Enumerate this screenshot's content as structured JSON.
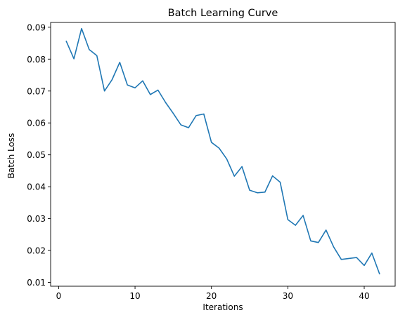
{
  "chart_data": {
    "type": "line",
    "title": "Batch Learning Curve",
    "xlabel": "Iterations",
    "ylabel": "Batch Loss",
    "xlim": [
      -1.05,
      44.05
    ],
    "ylim": [
      0.0088,
      0.0915
    ],
    "xticks": [
      {
        "value": 0,
        "label": "0"
      },
      {
        "value": 10,
        "label": "10"
      },
      {
        "value": 20,
        "label": "20"
      },
      {
        "value": 30,
        "label": "30"
      },
      {
        "value": 40,
        "label": "40"
      }
    ],
    "yticks": [
      {
        "value": 0.01,
        "label": "0.01"
      },
      {
        "value": 0.02,
        "label": "0.02"
      },
      {
        "value": 0.03,
        "label": "0.03"
      },
      {
        "value": 0.04,
        "label": "0.04"
      },
      {
        "value": 0.05,
        "label": "0.05"
      },
      {
        "value": 0.06,
        "label": "0.06"
      },
      {
        "value": 0.07,
        "label": "0.07"
      },
      {
        "value": 0.08,
        "label": "0.08"
      },
      {
        "value": 0.09,
        "label": "0.09"
      }
    ],
    "grid": false,
    "series": [
      {
        "color": "#1f77b4",
        "x": [
          1,
          2,
          3,
          4,
          5,
          6,
          7,
          8,
          9,
          10,
          11,
          12,
          13,
          14,
          15,
          16,
          17,
          18,
          19,
          20,
          21,
          22,
          23,
          24,
          25,
          26,
          27,
          28,
          29,
          30,
          31,
          32,
          33,
          34,
          35,
          36,
          37,
          38,
          39,
          40,
          41,
          42
        ],
        "values": [
          0.0856,
          0.0801,
          0.0896,
          0.083,
          0.0811,
          0.07,
          0.0736,
          0.079,
          0.0719,
          0.071,
          0.0732,
          0.0689,
          0.0703,
          0.0664,
          0.063,
          0.0594,
          0.0585,
          0.0623,
          0.0628,
          0.0539,
          0.0521,
          0.0487,
          0.0433,
          0.0463,
          0.0389,
          0.0381,
          0.0383,
          0.0434,
          0.0414,
          0.0297,
          0.0279,
          0.031,
          0.023,
          0.0225,
          0.0264,
          0.0211,
          0.0172,
          0.0175,
          0.0178,
          0.0153,
          0.0192,
          0.0127
        ]
      }
    ]
  }
}
